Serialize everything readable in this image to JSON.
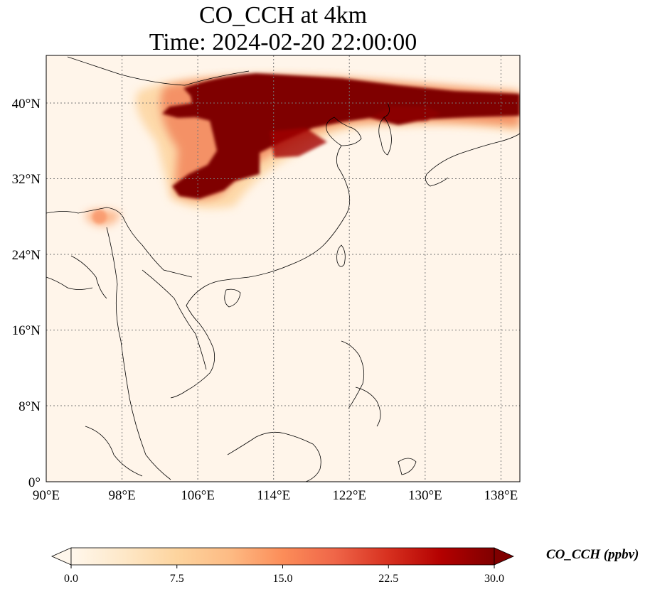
{
  "title": {
    "line1": "CO_CCH at 4km",
    "line2": "Time: 2024-02-20 22:00:00"
  },
  "map": {
    "lon_range": [
      90,
      140
    ],
    "lat_range": [
      0,
      40
    ],
    "lon_ticks": [
      "90°E",
      "98°E",
      "106°E",
      "114°E",
      "122°E",
      "130°E",
      "138°E"
    ],
    "lat_ticks": [
      "0°",
      "8°N",
      "16°N",
      "24°N",
      "32°N",
      "40°N"
    ],
    "field": "CO_CCH",
    "plume_region": "northern China, Korea and Sea of Japan (approx. 30°N–42°N)"
  },
  "colorbar": {
    "label": "CO_CCH (ppbv)",
    "ticks": [
      "0.0",
      "7.5",
      "15.0",
      "22.5",
      "30.0"
    ],
    "min": 0,
    "max": 30,
    "colormap": "OrRd",
    "colors": [
      "#fff7ec",
      "#fee8c8",
      "#fdd49e",
      "#fdbb84",
      "#fc8d59",
      "#ef6548",
      "#d7301f",
      "#b30000",
      "#7f0000"
    ]
  }
}
